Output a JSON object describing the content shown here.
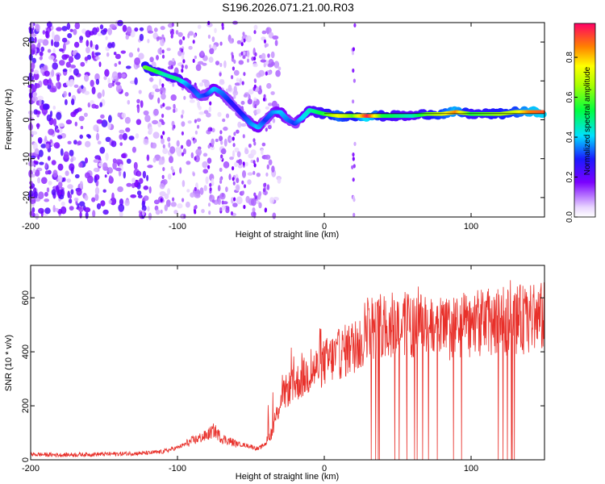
{
  "figure": {
    "title": "S196.2026.071.21.00.R03"
  },
  "chart_data": [
    {
      "type": "heatmap",
      "title": "",
      "xlabel": "Height of straight line (km)",
      "ylabel": "Frequency (Hz)",
      "xlim": [
        -200,
        150
      ],
      "ylim": [
        -25,
        25
      ],
      "xticks": [
        -200,
        -100,
        0,
        100
      ],
      "yticks": [
        -20,
        -10,
        0,
        10,
        20
      ],
      "colorbar": {
        "label": "Normalized spectral amplitude",
        "range": [
          0,
          0.97
        ],
        "ticks": [
          0.0,
          0.2,
          0.4,
          0.6,
          0.8
        ]
      },
      "ridge": {
        "x": [
          -122,
          -115,
          -108,
          -100,
          -95,
          -90,
          -85,
          -80,
          -75,
          -70,
          -65,
          -60,
          -55,
          -50,
          -45,
          -40,
          -35,
          -30,
          -25,
          -20,
          -15,
          -10,
          -5,
          0,
          10,
          20,
          30,
          40,
          50,
          60,
          70,
          80,
          90,
          100,
          110,
          120,
          130,
          140,
          150
        ],
        "y": [
          13.5,
          12.5,
          11.5,
          10.5,
          9.5,
          8,
          6,
          6.5,
          8,
          7,
          5,
          3,
          1,
          -1,
          -2,
          0,
          2,
          2,
          0,
          -1,
          0.5,
          2.5,
          2,
          1.5,
          1,
          1,
          1,
          1,
          1,
          1,
          1.5,
          1.5,
          2,
          1.5,
          1.5,
          1.5,
          2,
          2,
          2
        ],
        "amplitude": [
          0.6,
          0.55,
          0.45,
          0.5,
          0.4,
          0.3,
          0.35,
          0.3,
          0.4,
          0.35,
          0.3,
          0.25,
          0.3,
          0.35,
          0.4,
          0.3,
          0.35,
          0.4,
          0.35,
          0.3,
          0.4,
          0.45,
          0.5,
          0.55,
          0.75,
          0.6,
          0.95,
          0.55,
          0.5,
          0.45,
          0.6,
          0.7,
          0.85,
          0.55,
          0.6,
          0.65,
          0.7,
          0.85,
          0.9
        ]
      }
    },
    {
      "type": "line",
      "title": "",
      "xlabel": "Height of straight line (km)",
      "ylabel": "SNR (10 * v/v)",
      "xlim": [
        -200,
        150
      ],
      "ylim": [
        0,
        720
      ],
      "xticks": [
        -200,
        -100,
        0,
        100
      ],
      "yticks": [
        0,
        200,
        400,
        600
      ],
      "color": "#e8302a",
      "series": [
        {
          "name": "SNR",
          "x": [
            -200,
            -180,
            -160,
            -140,
            -120,
            -110,
            -100,
            -90,
            -80,
            -75,
            -70,
            -60,
            -50,
            -45,
            -40,
            -35,
            -30,
            -25,
            -20,
            -15,
            -10,
            -5,
            0,
            10,
            20,
            25,
            30,
            35,
            40,
            50,
            60,
            70,
            80,
            90,
            100,
            110,
            120,
            130,
            140,
            150
          ],
          "y": [
            20,
            18,
            20,
            22,
            25,
            30,
            45,
            70,
            90,
            110,
            80,
            60,
            50,
            40,
            60,
            110,
            220,
            260,
            280,
            300,
            320,
            340,
            360,
            390,
            420,
            430,
            520,
            480,
            500,
            500,
            500,
            490,
            480,
            490,
            500,
            510,
            510,
            520,
            520,
            530
          ]
        }
      ]
    }
  ]
}
